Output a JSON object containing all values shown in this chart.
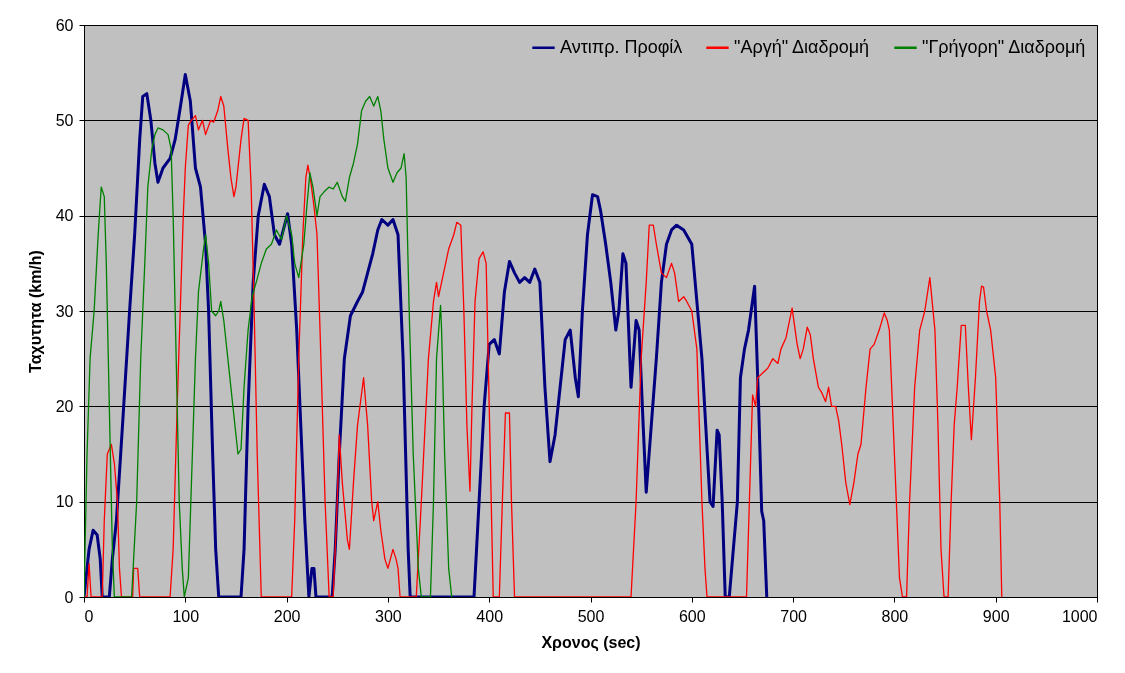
{
  "chart_data": {
    "type": "line",
    "xlabel": "Χρονος (sec)",
    "ylabel": "Ταχυτητα (km/h)",
    "xlim": [
      0,
      1000
    ],
    "xticks": [
      0,
      100,
      200,
      300,
      400,
      500,
      600,
      700,
      800,
      900,
      1000
    ],
    "ylim": [
      0,
      60
    ],
    "yticks": [
      0,
      10,
      20,
      30,
      40,
      50,
      60
    ],
    "grid": "y",
    "legend": "top right",
    "marker": "none",
    "line_style": "solid",
    "series": [
      {
        "name": "Αντιπρ. Προφίλ",
        "color": "#000080",
        "x": [
          0,
          5,
          9,
          13,
          16,
          18,
          25,
          28,
          32,
          38,
          45,
          50,
          55,
          58,
          62,
          66,
          70,
          73,
          78,
          85,
          90,
          96,
          100,
          105,
          110,
          115,
          120,
          123,
          127,
          130,
          133,
          155,
          158,
          162,
          167,
          172,
          178,
          183,
          188,
          193,
          198,
          201,
          205,
          210,
          214,
          218,
          222,
          225,
          227,
          229,
          245,
          248,
          252,
          257,
          263,
          270,
          275,
          280,
          285,
          290,
          294,
          300,
          305,
          310,
          315,
          320,
          322,
          385,
          390,
          395,
          400,
          405,
          410,
          415,
          420,
          425,
          430,
          435,
          440,
          445,
          450,
          455,
          460,
          465,
          470,
          475,
          480,
          485,
          488,
          492,
          497,
          502,
          507,
          510,
          515,
          520,
          525,
          528,
          532,
          535,
          540,
          545,
          548,
          552,
          555,
          560,
          565,
          570,
          575,
          580,
          585,
          592,
          600,
          610,
          618,
          621,
          625,
          627,
          630,
          633,
          637,
          645,
          648,
          652,
          656,
          662,
          666,
          669,
          671,
          674
        ],
        "values": [
          0,
          5,
          7,
          6.5,
          4,
          0,
          0,
          4,
          8,
          18,
          30,
          38,
          48,
          52.5,
          52.8,
          50,
          45.5,
          43.5,
          45,
          46,
          48,
          52,
          54.8,
          52,
          45,
          43,
          37,
          30,
          15,
          5,
          0,
          0,
          5,
          20,
          33,
          40,
          43.3,
          42,
          38,
          37,
          39,
          40.2,
          37,
          28,
          18,
          8,
          0,
          3,
          3,
          0,
          0,
          5,
          15,
          25,
          29.5,
          31,
          32,
          34,
          36,
          38.5,
          39.6,
          39,
          39.6,
          38,
          25,
          5,
          0,
          0,
          10,
          20,
          26.5,
          27,
          25.5,
          32,
          35.2,
          34,
          33,
          33.5,
          33,
          34.4,
          33,
          22,
          14.2,
          17,
          22,
          27,
          28,
          23,
          21,
          30,
          38,
          42.2,
          42,
          40.5,
          37,
          33,
          28,
          30,
          36,
          35,
          22,
          29,
          28,
          18,
          11,
          18,
          25,
          33,
          37,
          38.5,
          39,
          38.5,
          37,
          25,
          10,
          9.5,
          17.5,
          17,
          10,
          0,
          0,
          10,
          23,
          26,
          28,
          32.6,
          20,
          9,
          8,
          0
        ]
      },
      {
        "name": "\"Αργή\" Διαδρομή",
        "color": "#ff0000",
        "x": [
          0,
          3,
          5,
          7,
          18,
          20,
          23,
          27,
          30,
          33,
          35,
          37,
          48,
          49,
          53,
          55,
          85,
          88,
          92,
          95,
          98,
          100,
          103,
          106,
          110,
          113,
          117,
          120,
          125,
          128,
          132,
          135,
          138,
          142,
          145,
          148,
          150,
          155,
          158,
          162,
          165,
          168,
          171,
          175,
          205,
          208,
          212,
          216,
          219,
          221,
          224,
          227,
          230,
          233,
          238,
          242,
          246,
          250,
          252,
          255,
          260,
          262,
          266,
          270,
          276,
          280,
          284,
          286,
          290,
          293,
          297,
          300,
          305,
          308,
          310,
          312,
          328,
          333,
          340,
          345,
          348,
          350,
          353,
          357,
          360,
          365,
          368,
          372,
          375,
          378,
          381,
          383,
          386,
          390,
          394,
          397,
          400,
          403,
          404,
          410,
          413,
          416,
          420,
          422,
          425,
          540,
          545,
          550,
          555,
          558,
          562,
          565,
          570,
          575,
          580,
          583,
          587,
          592,
          595,
          600,
          605,
          610,
          613,
          615,
          623,
          654,
          660,
          663,
          665,
          670,
          675,
          680,
          685,
          688,
          693,
          699,
          704,
          707,
          710,
          714,
          717,
          720,
          725,
          728,
          732,
          735,
          738,
          742,
          745,
          748,
          752,
          756,
          760,
          764,
          767,
          772,
          776,
          780,
          785,
          790,
          793,
          795,
          800,
          805,
          808,
          812,
          815,
          820,
          825,
          830,
          835,
          840,
          843,
          846,
          849,
          853,
          856,
          859,
          862,
          866,
          870,
          873,
          876,
          880,
          884,
          886,
          888,
          891,
          895,
          900,
          904,
          906
        ],
        "values": [
          0,
          0,
          3.5,
          0,
          0,
          8,
          15,
          16,
          14,
          10,
          3,
          0,
          0,
          3,
          3,
          0,
          0,
          5,
          20,
          30,
          40,
          45,
          49.5,
          50,
          50.5,
          49,
          50,
          48.5,
          50,
          49.8,
          51,
          52.5,
          51.5,
          47,
          44,
          42,
          43,
          48,
          50.2,
          50,
          43,
          30,
          15,
          0,
          0,
          8,
          25,
          38,
          44,
          45.3,
          43.5,
          41,
          38,
          28,
          10,
          0,
          0,
          10,
          17,
          12,
          6,
          5,
          12,
          18,
          23,
          18,
          10,
          8,
          10,
          7,
          4,
          3,
          5,
          4,
          3,
          0,
          0,
          10,
          25,
          31,
          33,
          31.5,
          33,
          35,
          36.5,
          38,
          39.3,
          39,
          30,
          18,
          11.1,
          20,
          31,
          35.5,
          36.2,
          35,
          20,
          5,
          0,
          0,
          10,
          19.3,
          19.3,
          10,
          0,
          0,
          10,
          25,
          33,
          39,
          39,
          37,
          34,
          33.5,
          35,
          34,
          31,
          31.5,
          31,
          30,
          26,
          10,
          3,
          0,
          0,
          0,
          21.2,
          20,
          23,
          23.5,
          24,
          25,
          24.5,
          26,
          27.2,
          30.3,
          26.5,
          25,
          26,
          28.3,
          27.5,
          25,
          22,
          21.5,
          20.5,
          22,
          20,
          20,
          18.5,
          16,
          12,
          9.7,
          12,
          15,
          16,
          22,
          26,
          26.5,
          28,
          29.8,
          29,
          28,
          15,
          2,
          0,
          0,
          10,
          22,
          28,
          30,
          33.5,
          28,
          18,
          5,
          0,
          0,
          10,
          18,
          22,
          28.5,
          28.5,
          22,
          16.5,
          23,
          31,
          32.6,
          32.5,
          30,
          28,
          23,
          10,
          0
        ]
      },
      {
        "name": "\"Γρήγορη\" Διαδρομή",
        "color": "#008000",
        "x": [
          0,
          3,
          6,
          10,
          14,
          17,
          20,
          22,
          24,
          26,
          28,
          30,
          47,
          52,
          56,
          60,
          63,
          67,
          70,
          73,
          78,
          83,
          86,
          88,
          91,
          94,
          97,
          99,
          103,
          107,
          110,
          113,
          118,
          120,
          123,
          126,
          130,
          133,
          135,
          138,
          142,
          147,
          152,
          155,
          158,
          162,
          166,
          170,
          175,
          180,
          185,
          190,
          195,
          200,
          205,
          208,
          212,
          217,
          220,
          223,
          226,
          230,
          233,
          237,
          242,
          246,
          250,
          255,
          258,
          262,
          266,
          270,
          274,
          278,
          282,
          286,
          290,
          293,
          296,
          300,
          305,
          309,
          313,
          316,
          318,
          321,
          325,
          330,
          333,
          342,
          345,
          348,
          352,
          353,
          356,
          360,
          363
        ],
        "values": [
          0,
          15,
          25,
          30,
          38,
          43,
          42,
          35,
          25,
          15,
          5,
          0,
          0,
          10,
          25,
          35,
          43,
          47,
          48.5,
          49.2,
          49,
          48.5,
          47,
          40,
          25,
          10,
          3,
          0,
          2,
          15,
          25,
          32,
          36.5,
          38,
          35,
          30,
          29.5,
          30,
          31,
          29,
          25,
          20,
          15,
          15.5,
          22,
          28,
          31.5,
          33,
          35,
          36.5,
          37,
          38.5,
          37.5,
          40,
          38,
          35,
          33.5,
          37,
          41,
          44.5,
          43,
          40,
          42,
          42.5,
          43,
          42.8,
          43.5,
          42,
          41.5,
          44,
          45.5,
          47.5,
          51,
          52,
          52.5,
          51.5,
          52.5,
          51,
          48,
          45,
          43.5,
          44.5,
          45,
          46.5,
          44,
          30,
          15,
          3,
          0,
          0,
          10,
          25,
          30.6,
          28,
          15,
          3,
          0
        ]
      }
    ]
  }
}
